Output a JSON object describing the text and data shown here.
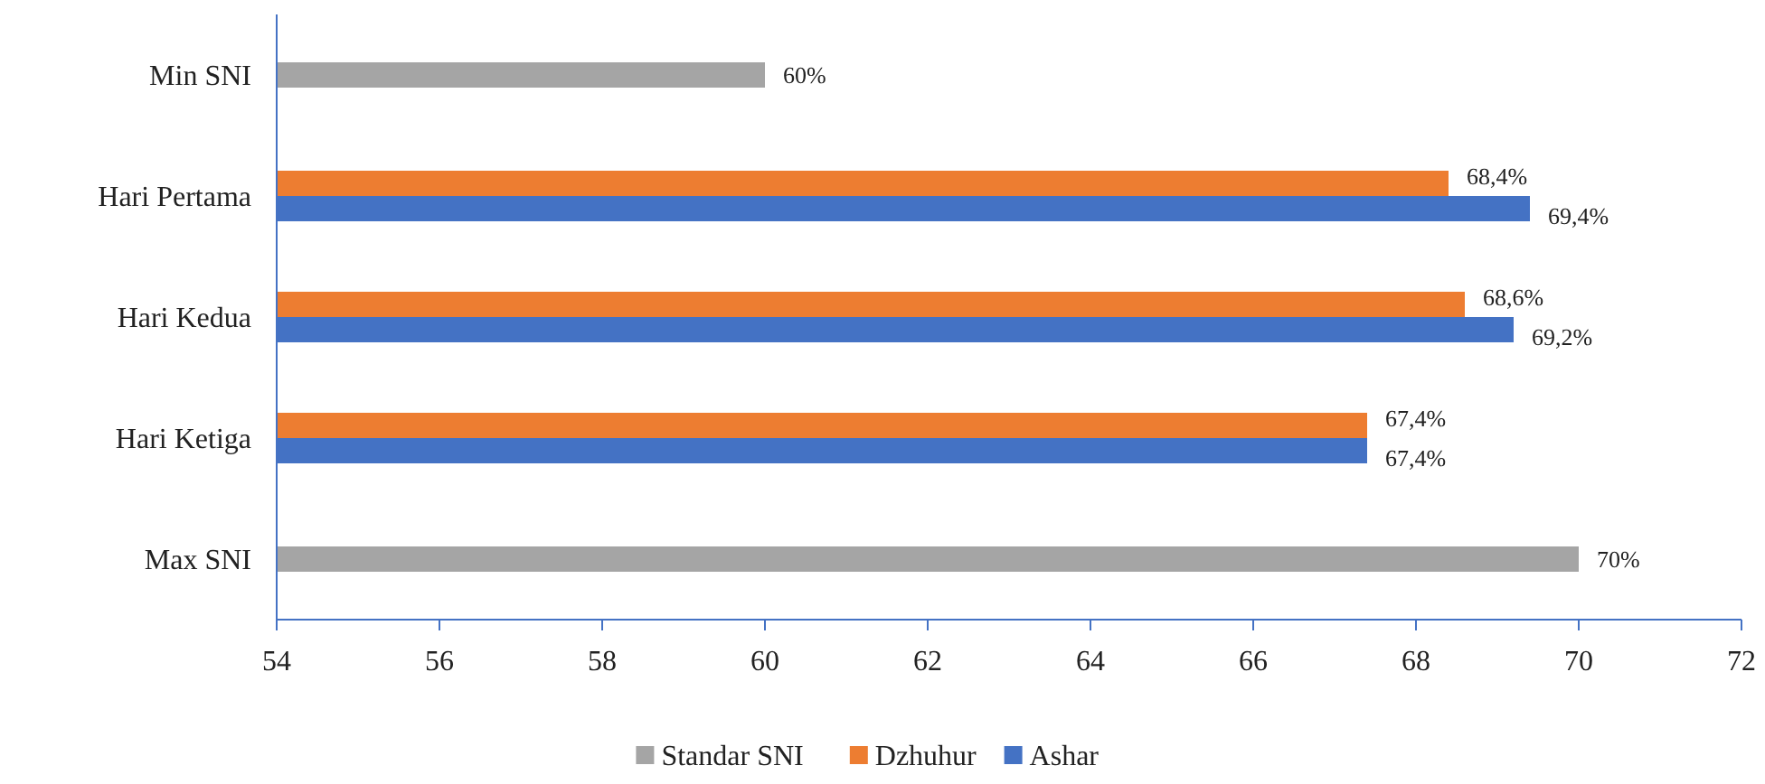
{
  "chart_data": {
    "type": "bar",
    "orientation": "horizontal",
    "categories": [
      "Min SNI",
      "Hari Pertama",
      "Hari Kedua",
      "Hari Ketiga",
      "Max SNI"
    ],
    "series": [
      {
        "name": "Standar SNI",
        "color": "#a5a5a5",
        "values": [
          60,
          null,
          null,
          null,
          70
        ],
        "value_labels": [
          "60%",
          null,
          null,
          null,
          "70%"
        ]
      },
      {
        "name": "Dzhuhur",
        "color": "#ed7d31",
        "values": [
          null,
          68.4,
          68.6,
          67.4,
          null
        ],
        "value_labels": [
          null,
          "68,4%",
          "68,6%",
          "67,4%",
          null
        ]
      },
      {
        "name": "Ashar",
        "color": "#4472c4",
        "values": [
          null,
          69.4,
          69.2,
          67.4,
          null
        ],
        "value_labels": [
          null,
          "69,4%",
          "69,2%",
          "67,4%",
          null
        ]
      }
    ],
    "xlim": [
      54,
      72
    ],
    "xticks": [
      54,
      56,
      58,
      60,
      62,
      64,
      66,
      68,
      70,
      72
    ],
    "legend": "bottom"
  }
}
